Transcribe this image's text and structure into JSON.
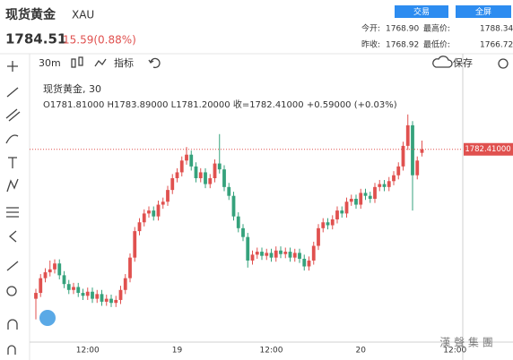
{
  "header": {
    "title": "现货黄金",
    "symbol": "XAU",
    "price": "1784.51",
    "change": "15.59(0.88%)",
    "buttons": [
      "交易",
      "全屏"
    ],
    "stats": [
      {
        "label": "今开:",
        "value": "1768.90"
      },
      {
        "label": "最高价:",
        "value": "1788.34"
      },
      {
        "label": "昨收:",
        "value": "1768.92"
      },
      {
        "label": "最低价:",
        "value": "1766.72"
      }
    ]
  },
  "toolbar": {
    "interval": "30m",
    "indicators": "指标",
    "save": "保存"
  },
  "chart_data": {
    "type": "candlestick",
    "legend_title": "现货黄金, 30",
    "legend_text": "O1781.81000 H1783.89000 L1781.20000 收=1782.41000 +0.59000 (+0.03%)",
    "up_color": "#e0514f",
    "down_color": "#35a27c",
    "price_line": {
      "value": 1782.41,
      "label": "1782.41000"
    },
    "categories": [
      null,
      null,
      null,
      null,
      null,
      null,
      null,
      null,
      null,
      null,
      null,
      "12:00",
      null,
      null,
      null,
      null,
      null,
      null,
      null,
      null,
      null,
      null,
      null,
      null,
      null,
      null,
      null,
      null,
      null,
      null,
      "19",
      null,
      null,
      null,
      null,
      null,
      null,
      null,
      null,
      null,
      null,
      null,
      null,
      null,
      null,
      null,
      null,
      null,
      null,
      null,
      "12:00",
      null,
      null,
      null,
      null,
      null,
      null,
      null,
      null,
      null,
      null,
      null,
      null,
      null,
      null,
      null,
      null,
      null,
      null,
      "20",
      null,
      null,
      null,
      null,
      null,
      null,
      null,
      null,
      null,
      null,
      null,
      null,
      null,
      null,
      null,
      null,
      null,
      null,
      null,
      "12:00"
    ],
    "open": [
      1757.0,
      1758.0,
      1760.5,
      1761.5,
      1762.0,
      1763.0,
      1761.0,
      1759.5,
      1758.5,
      1759.0,
      1758.0,
      1757.5,
      1758.2,
      1757.0,
      1757.8,
      1756.5,
      1757.0,
      1756.3,
      1756.8,
      1758.5,
      1760.5,
      1764.0,
      1768.5,
      1770.0,
      1771.5,
      1772.0,
      1771.0,
      1773.0,
      1773.5,
      1775.5,
      1777.5,
      1778.5,
      1780.5,
      1781.5,
      1779.5,
      1777.5,
      1778.5,
      1776.5,
      1777.5,
      1780.0,
      1779.0,
      1776.0,
      1774.5,
      1771.0,
      1769.0,
      1767.5,
      1763.5,
      1764.5,
      1765.0,
      1764.3,
      1764.8,
      1764.0,
      1765.2,
      1764.6,
      1765.0,
      1764.0,
      1764.8,
      1763.8,
      1762.5,
      1763.5,
      1766.0,
      1769.0,
      1770.0,
      1769.5,
      1770.5,
      1772.0,
      1771.5,
      1773.5,
      1774.0,
      1773.0,
      1775.0,
      1774.5,
      1774.0,
      1776.0,
      1776.5,
      1776.0,
      1777.0,
      1778.0,
      1779.5,
      1783.0,
      1786.5,
      1778.0,
      1781.81,
      null,
      null,
      null,
      null,
      null,
      null,
      null
    ],
    "high": [
      1758.7,
      1761.2,
      1762.2,
      1763.5,
      1763.7,
      1763.7,
      1761.7,
      1760.2,
      1759.7,
      1759.7,
      1758.7,
      1758.9,
      1758.9,
      1758.5,
      1758.5,
      1757.7,
      1757.7,
      1757.5,
      1759.2,
      1761.2,
      1764.7,
      1769.2,
      1770.7,
      1772.2,
      1772.7,
      1772.7,
      1773.7,
      1774.2,
      1776.2,
      1778.2,
      1779.2,
      1781.2,
      1782.8,
      1782.2,
      1780.2,
      1779.2,
      1779.2,
      1778.2,
      1780.7,
      1785.0,
      1779.7,
      1776.7,
      1775.2,
      1771.7,
      1769.7,
      1768.2,
      1765.2,
      1765.7,
      1765.7,
      1765.5,
      1765.5,
      1765.9,
      1765.9,
      1765.7,
      1765.7,
      1765.5,
      1765.5,
      1764.5,
      1764.2,
      1766.7,
      1769.7,
      1770.7,
      1770.7,
      1771.2,
      1772.7,
      1772.7,
      1774.2,
      1774.7,
      1774.7,
      1775.7,
      1775.7,
      1775.2,
      1776.7,
      1777.2,
      1777.2,
      1777.7,
      1778.7,
      1780.2,
      1783.7,
      1788.34,
      1787.2,
      1781.2,
      1783.89,
      null,
      null,
      null,
      null,
      null,
      null,
      null
    ],
    "low": [
      1753.5,
      1757.3,
      1759.8,
      1760.8,
      1761.3,
      1760.3,
      1758.8,
      1757.8,
      1757.8,
      1757.3,
      1756.8,
      1756.8,
      1756.3,
      1756.3,
      1755.8,
      1755.8,
      1755.6,
      1755.6,
      1756.1,
      1757.8,
      1759.8,
      1763.3,
      1767.8,
      1769.3,
      1770.8,
      1770.3,
      1770.3,
      1772.3,
      1772.8,
      1774.8,
      1776.8,
      1777.8,
      1779.8,
      1778.8,
      1776.8,
      1776.8,
      1775.8,
      1775.8,
      1776.8,
      1778.3,
      1775.3,
      1773.8,
      1770.3,
      1768.3,
      1766.8,
      1762.3,
      1762.8,
      1763.8,
      1763.6,
      1763.6,
      1763.3,
      1763.3,
      1763.9,
      1763.9,
      1763.3,
      1763.3,
      1763.1,
      1761.8,
      1761.8,
      1762.8,
      1765.3,
      1768.3,
      1768.8,
      1768.8,
      1769.8,
      1770.8,
      1770.8,
      1772.8,
      1772.3,
      1772.3,
      1773.8,
      1773.3,
      1773.3,
      1775.3,
      1775.3,
      1775.3,
      1776.3,
      1777.3,
      1778.8,
      1782.3,
      1772.0,
      1777.3,
      1781.2,
      null,
      null,
      null,
      null,
      null,
      null,
      null
    ],
    "close": [
      1758.0,
      1760.5,
      1761.5,
      1762.0,
      1763.0,
      1761.0,
      1759.5,
      1758.5,
      1759.0,
      1758.0,
      1757.5,
      1758.2,
      1757.0,
      1757.8,
      1756.5,
      1757.0,
      1756.3,
      1756.8,
      1758.5,
      1760.5,
      1764.0,
      1768.5,
      1770.0,
      1771.5,
      1772.0,
      1771.0,
      1773.0,
      1773.5,
      1775.5,
      1777.5,
      1778.5,
      1780.5,
      1781.5,
      1779.5,
      1777.5,
      1778.5,
      1776.5,
      1777.5,
      1780.0,
      1779.0,
      1776.0,
      1774.5,
      1771.0,
      1769.0,
      1767.5,
      1763.5,
      1764.5,
      1765.0,
      1764.3,
      1764.8,
      1764.0,
      1765.2,
      1764.6,
      1765.0,
      1764.0,
      1764.8,
      1763.8,
      1762.5,
      1763.5,
      1766.0,
      1769.0,
      1770.0,
      1769.5,
      1770.5,
      1772.0,
      1771.5,
      1773.5,
      1774.0,
      1773.0,
      1775.0,
      1774.5,
      1774.0,
      1776.0,
      1776.5,
      1776.0,
      1777.0,
      1778.0,
      1779.5,
      1783.0,
      1786.5,
      1778.0,
      1780.5,
      1782.41,
      null,
      null,
      null,
      null,
      null,
      null,
      null
    ],
    "ylim": [
      1750.7,
      1794.4
    ]
  },
  "watermark": "漢 聲 集 團"
}
